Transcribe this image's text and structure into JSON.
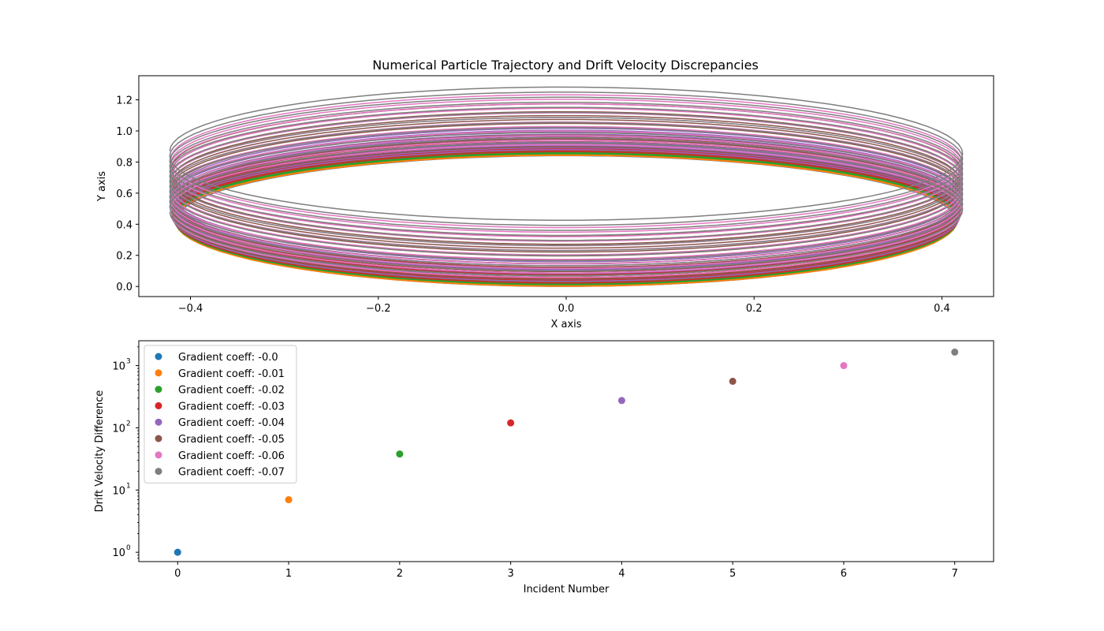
{
  "chart_data": [
    {
      "type": "line",
      "title": "Numerical Particle Trajectory and Drift Velocity Discrepancies",
      "xlabel": "X axis",
      "ylabel": "Y axis",
      "xlim": [
        -0.455,
        0.455
      ],
      "ylim": [
        -0.065,
        1.355
      ],
      "xticks": [
        -0.4,
        -0.2,
        0.0,
        0.2,
        0.4
      ],
      "xtick_labels": [
        "−0.4",
        "−0.2",
        "0.0",
        "0.2",
        "0.4"
      ],
      "yticks": [
        0.0,
        0.2,
        0.4,
        0.6,
        0.8,
        1.0,
        1.2
      ],
      "ytick_labels": [
        "0.0",
        "0.2",
        "0.4",
        "0.6",
        "0.8",
        "1.0",
        "1.2"
      ],
      "grid": false,
      "description_of_series": "8 spiral trajectories, one per gradient coefficient, each circling many times with radius about 0.42 and vertical drift",
      "series": [
        {
          "color": "#1f77b4",
          "radius_x": 0.415,
          "radius_y": 0.42,
          "center_y_start": 0.42,
          "center_y_end": 0.44,
          "turns": 12
        },
        {
          "color": "#ff7f0e",
          "radius_x": 0.416,
          "radius_y": 0.42,
          "center_y_start": 0.42,
          "center_y_end": 0.46,
          "turns": 12
        },
        {
          "color": "#2ca02c",
          "radius_x": 0.417,
          "radius_y": 0.42,
          "center_y_start": 0.43,
          "center_y_end": 0.48,
          "turns": 12
        },
        {
          "color": "#d62728",
          "radius_x": 0.418,
          "radius_y": 0.42,
          "center_y_start": 0.44,
          "center_y_end": 0.55,
          "turns": 12
        },
        {
          "color": "#9467bd",
          "radius_x": 0.419,
          "radius_y": 0.42,
          "center_y_start": 0.45,
          "center_y_end": 0.6,
          "turns": 12
        },
        {
          "color": "#8c564b",
          "radius_x": 0.42,
          "radius_y": 0.42,
          "center_y_start": 0.46,
          "center_y_end": 0.76,
          "turns": 12
        },
        {
          "color": "#e377c2",
          "radius_x": 0.421,
          "radius_y": 0.42,
          "center_y_start": 0.47,
          "center_y_end": 0.82,
          "turns": 12
        },
        {
          "color": "#7f7f7f",
          "radius_x": 0.422,
          "radius_y": 0.42,
          "center_y_start": 0.48,
          "center_y_end": 0.87,
          "turns": 12
        }
      ]
    },
    {
      "type": "scatter",
      "title": "",
      "xlabel": "Incident Number",
      "ylabel": "Drift Velocity Difference",
      "yscale": "log",
      "xlim": [
        -0.35,
        7.35
      ],
      "ylim_log10": [
        -0.15,
        3.4
      ],
      "xticks": [
        0,
        1,
        2,
        3,
        4,
        5,
        6,
        7
      ],
      "xtick_labels": [
        "0",
        "1",
        "2",
        "3",
        "4",
        "5",
        "6",
        "7"
      ],
      "yticks": [
        1,
        10,
        100,
        1000
      ],
      "ytick_labels": [
        "10",
        "10",
        "10",
        "10"
      ],
      "ytick_exponents": [
        "0",
        "1",
        "2",
        "3"
      ],
      "grid": false,
      "legend_position": "upper-left",
      "series": [
        {
          "name": "Gradient coeff: -0.0",
          "x": 0,
          "y": 1,
          "color": "#1f77b4"
        },
        {
          "name": "Gradient coeff: -0.01",
          "x": 1,
          "y": 7,
          "color": "#ff7f0e"
        },
        {
          "name": "Gradient coeff: -0.02",
          "x": 2,
          "y": 38,
          "color": "#2ca02c"
        },
        {
          "name": "Gradient coeff: -0.03",
          "x": 3,
          "y": 120,
          "color": "#d62728"
        },
        {
          "name": "Gradient coeff: -0.04",
          "x": 4,
          "y": 275,
          "color": "#9467bd"
        },
        {
          "name": "Gradient coeff: -0.05",
          "x": 5,
          "y": 560,
          "color": "#8c564b"
        },
        {
          "name": "Gradient coeff: -0.06",
          "x": 6,
          "y": 1000,
          "color": "#e377c2"
        },
        {
          "name": "Gradient coeff: -0.07",
          "x": 7,
          "y": 1650,
          "color": "#7f7f7f"
        }
      ]
    }
  ]
}
